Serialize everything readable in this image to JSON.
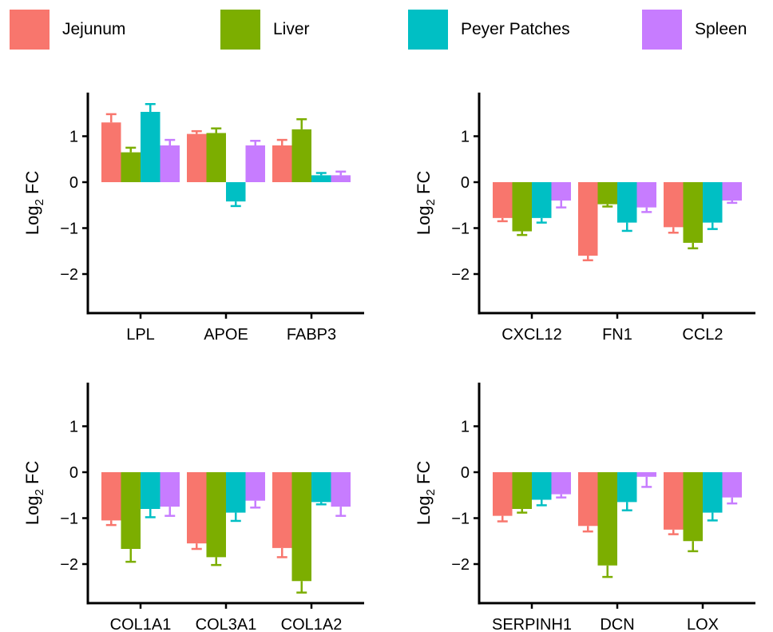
{
  "legend": [
    {
      "name": "Jejunum",
      "color": "#F8766D"
    },
    {
      "name": "Liver",
      "color": "#7CAE00"
    },
    {
      "name": "Peyer Patches",
      "color": "#00BFC4"
    },
    {
      "name": "Spleen",
      "color": "#C77CFF"
    }
  ],
  "axis": {
    "ylabel_main": "Log",
    "ylabel_sub": "2",
    "ylabel_tail": " FC"
  },
  "chart_data": [
    {
      "type": "bar",
      "categories": [
        "LPL",
        "APOE",
        "FABP3"
      ],
      "ylim": [
        -2.85,
        1.95
      ],
      "yticks": [
        1,
        0,
        -1,
        -2
      ],
      "grid": false,
      "legend_position": "top",
      "series": [
        {
          "name": "Jejunum",
          "values": [
            1.3,
            1.05,
            0.8
          ],
          "errors": [
            0.18,
            0.06,
            0.12
          ]
        },
        {
          "name": "Liver",
          "values": [
            0.65,
            1.07,
            1.15
          ],
          "errors": [
            0.1,
            0.1,
            0.22
          ]
        },
        {
          "name": "Peyer Patches",
          "values": [
            1.53,
            -0.42,
            0.15
          ],
          "errors": [
            0.17,
            0.1,
            0.05
          ]
        },
        {
          "name": "Spleen",
          "values": [
            0.8,
            0.8,
            0.15
          ],
          "errors": [
            0.12,
            0.1,
            0.08
          ]
        }
      ]
    },
    {
      "type": "bar",
      "categories": [
        "CXCL12",
        "FN1",
        "CCL2"
      ],
      "ylim": [
        -2.85,
        1.95
      ],
      "yticks": [
        1,
        0,
        -1,
        -2
      ],
      "grid": false,
      "legend_position": "top",
      "series": [
        {
          "name": "Jejunum",
          "values": [
            -0.78,
            -1.6,
            -0.98
          ],
          "errors": [
            0.07,
            0.1,
            0.12
          ]
        },
        {
          "name": "Liver",
          "values": [
            -1.07,
            -0.48,
            -1.32
          ],
          "errors": [
            0.08,
            0.05,
            0.12
          ]
        },
        {
          "name": "Peyer Patches",
          "values": [
            -0.78,
            -0.88,
            -0.88
          ],
          "errors": [
            0.1,
            0.18,
            0.14
          ]
        },
        {
          "name": "Spleen",
          "values": [
            -0.4,
            -0.55,
            -0.4
          ],
          "errors": [
            0.15,
            0.1,
            0.05
          ]
        }
      ]
    },
    {
      "type": "bar",
      "categories": [
        "COL1A1",
        "COL3A1",
        "COL1A2"
      ],
      "ylim": [
        -2.85,
        1.95
      ],
      "yticks": [
        1,
        0,
        -1,
        -2
      ],
      "grid": false,
      "legend_position": "top",
      "series": [
        {
          "name": "Jejunum",
          "values": [
            -1.05,
            -1.55,
            -1.65
          ],
          "errors": [
            0.1,
            0.12,
            0.2
          ]
        },
        {
          "name": "Liver",
          "values": [
            -1.67,
            -1.85,
            -2.37
          ],
          "errors": [
            0.28,
            0.17,
            0.25
          ]
        },
        {
          "name": "Peyer Patches",
          "values": [
            -0.8,
            -0.88,
            -0.65
          ],
          "errors": [
            0.18,
            0.18,
            0.05
          ]
        },
        {
          "name": "Spleen",
          "values": [
            -0.75,
            -0.62,
            -0.75
          ],
          "errors": [
            0.2,
            0.15,
            0.2
          ]
        }
      ]
    },
    {
      "type": "bar",
      "categories": [
        "SERPINH1",
        "DCN",
        "LOX"
      ],
      "ylim": [
        -2.85,
        1.95
      ],
      "yticks": [
        1,
        0,
        -1,
        -2
      ],
      "grid": false,
      "legend_position": "top",
      "series": [
        {
          "name": "Jejunum",
          "values": [
            -0.95,
            -1.17,
            -1.25
          ],
          "errors": [
            0.12,
            0.12,
            0.1
          ]
        },
        {
          "name": "Liver",
          "values": [
            -0.8,
            -2.03,
            -1.5
          ],
          "errors": [
            0.08,
            0.25,
            0.22
          ]
        },
        {
          "name": "Peyer Patches",
          "values": [
            -0.6,
            -0.65,
            -0.88
          ],
          "errors": [
            0.12,
            0.18,
            0.17
          ]
        },
        {
          "name": "Spleen",
          "values": [
            -0.48,
            -0.1,
            -0.55
          ],
          "errors": [
            0.07,
            0.22,
            0.13
          ]
        }
      ]
    }
  ]
}
